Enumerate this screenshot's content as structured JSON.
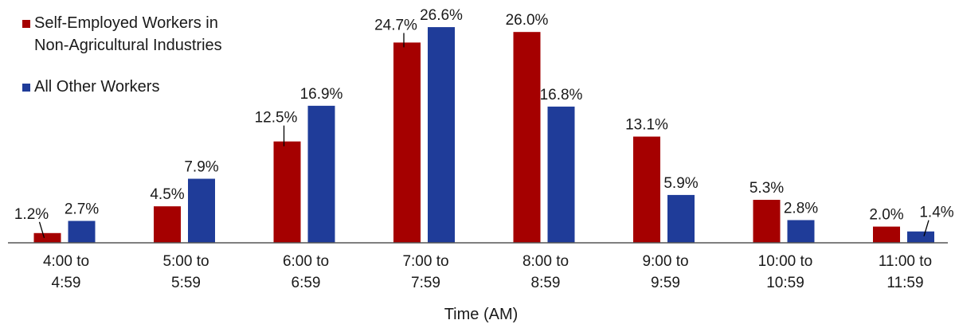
{
  "chart_data": {
    "type": "bar",
    "title": "",
    "xlabel": "Time (AM)",
    "ylabel": "",
    "ylim": [
      0,
      27
    ],
    "grid": false,
    "legend_position": "top-left",
    "categories": [
      [
        "4:00 to",
        "4:59"
      ],
      [
        "5:00 to",
        "5:59"
      ],
      [
        "6:00 to",
        "6:59"
      ],
      [
        "7:00 to",
        "7:59"
      ],
      [
        "8:00 to",
        "8:59"
      ],
      [
        "9:00 to",
        "9:59"
      ],
      [
        "10:00 to",
        "10:59"
      ],
      [
        "11:00 to",
        "11:59"
      ]
    ],
    "series": [
      {
        "name": "Self-Employed Workers in Non-Agricultural Industries",
        "legend_lines": [
          "Self-Employed Workers in",
          "Non-Agricultural Industries"
        ],
        "color": "#a50000",
        "values": [
          1.2,
          4.5,
          12.5,
          24.7,
          26.0,
          13.1,
          5.3,
          2.0
        ],
        "labels": [
          "1.2%",
          "4.5%",
          "12.5%",
          "24.7%",
          "26.0%",
          "13.1%",
          "5.3%",
          "2.0%"
        ]
      },
      {
        "name": "All Other Workers",
        "legend_lines": [
          "All Other Workers"
        ],
        "color": "#1f3c99",
        "values": [
          2.7,
          7.9,
          16.9,
          26.6,
          16.8,
          5.9,
          2.8,
          1.4
        ],
        "labels": [
          "2.7%",
          "7.9%",
          "16.9%",
          "26.6%",
          "16.8%",
          "5.9%",
          "2.8%",
          "1.4%"
        ]
      }
    ]
  }
}
